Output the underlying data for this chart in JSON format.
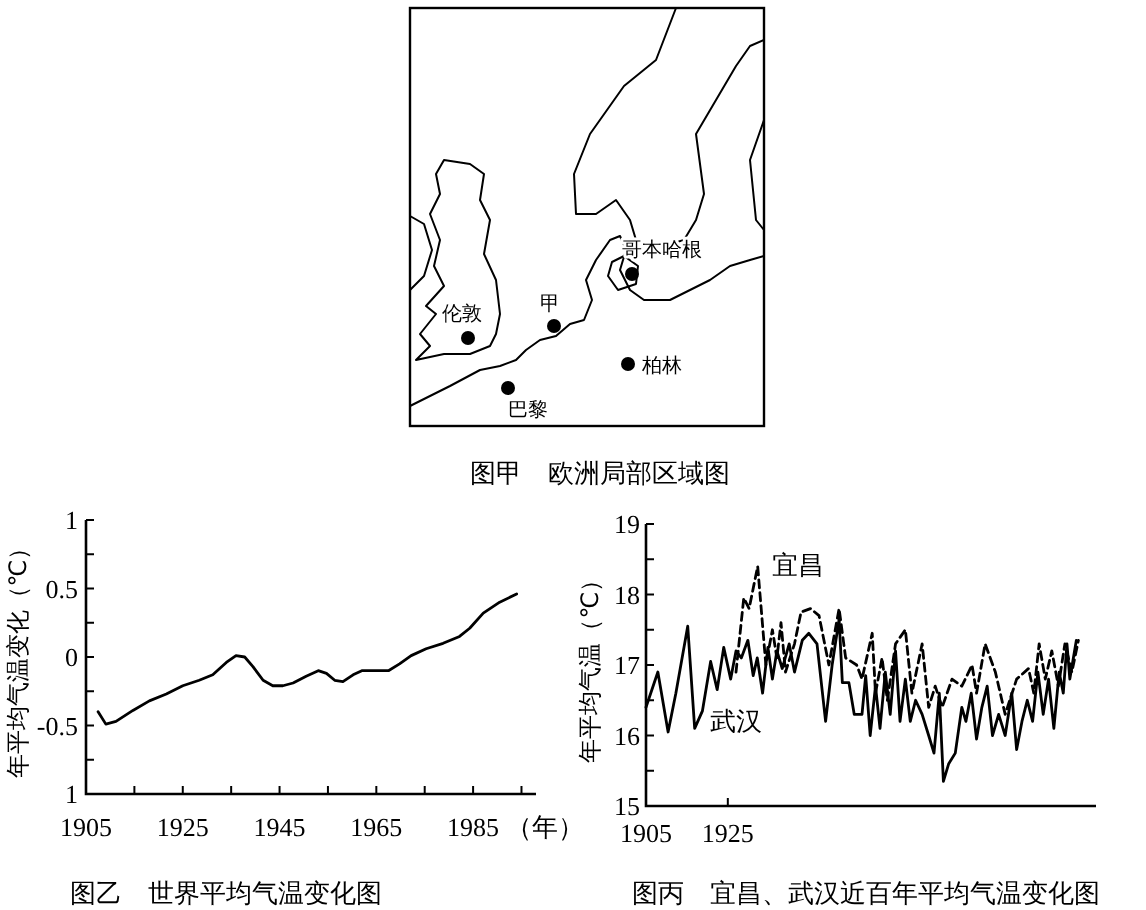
{
  "chart_data": [
    {
      "type": "other",
      "title": "图甲　欧洲局部区域图",
      "annotations": [
        "哥本哈根",
        "甲",
        "伦敦",
        "柏林",
        "巴黎"
      ]
    },
    {
      "type": "line",
      "title": "图乙　世界平均气温变化图",
      "ylabel": "年平均气温变化（℃）",
      "xlabel": "（年）",
      "color": "#000000",
      "x": [
        1907.5,
        1909.1,
        1911.2,
        1914.7,
        1918.1,
        1921.6,
        1925,
        1928.4,
        1931.2,
        1934,
        1936,
        1937.8,
        1939.5,
        1941.6,
        1943.6,
        1945.7,
        1947.8,
        1950.5,
        1953,
        1954.7,
        1956.4,
        1958.1,
        1960.2,
        1962,
        1964.3,
        1967.5,
        1969.8,
        1972.2,
        1975.3,
        1978.8,
        1982.2,
        1984.3,
        1987.1,
        1990.5,
        1994
      ],
      "values": [
        -0.4,
        -0.49,
        -0.47,
        -0.39,
        -0.32,
        -0.27,
        -0.21,
        -0.17,
        -0.13,
        -0.04,
        0.01,
        0,
        -0.07,
        -0.17,
        -0.21,
        -0.21,
        -0.19,
        -0.14,
        -0.1,
        -0.12,
        -0.17,
        -0.18,
        -0.13,
        -0.1,
        -0.1,
        -0.1,
        -0.05,
        0.01,
        0.06,
        0.1,
        0.15,
        0.21,
        0.32,
        0.4,
        0.46
      ],
      "xlim": [
        1905,
        1998
      ],
      "ylim": [
        -1,
        1
      ],
      "xticks": [
        1905,
        {
          "value": 1915,
          "label": null
        },
        1925,
        {
          "value": 1935,
          "label": null
        },
        1945,
        {
          "value": 1955,
          "label": null
        },
        1965,
        {
          "value": 1975,
          "label": null
        },
        1985,
        {
          "value": 1995,
          "label": null
        }
      ],
      "yticks": [
        {
          "value": -1,
          "label": "1"
        },
        {
          "value": -0.75,
          "label": null
        },
        -0.5,
        {
          "value": -0.25,
          "label": null
        },
        0,
        {
          "value": 0.25,
          "label": null
        },
        0.5,
        {
          "value": 0.75,
          "label": null
        },
        1
      ]
    },
    {
      "type": "line",
      "title": "图丙　宜昌、武汉近百年平均气温变化图",
      "ylabel": "年平均气温（℃）",
      "xlim": [
        1905,
        2015
      ],
      "ylim": [
        15,
        19
      ],
      "xticks": [
        1905,
        1925
      ],
      "yticks": [
        15,
        {
          "value": 15.5,
          "label": null
        },
        16,
        {
          "value": 16.5,
          "label": null
        },
        17,
        {
          "value": 17.5,
          "label": null
        },
        18,
        {
          "value": 18.5,
          "label": null
        },
        19
      ],
      "series": [
        {
          "name": "武汉",
          "color": "#000000",
          "line_style": "solid",
          "x": [
            1905,
            1907.9,
            1910.4,
            1912.3,
            1915.2,
            1916.9,
            1918.8,
            1920.8,
            1922.4,
            1924,
            1925.7,
            1927,
            1928.3,
            1929.9,
            1931.2,
            1932.2,
            1933.5,
            1934.8,
            1935.9,
            1937,
            1938.3,
            1940,
            1941.3,
            1943.2,
            1944.8,
            1946.8,
            1948.9,
            1950.5,
            1952.2,
            1953,
            1954.6,
            1955.9,
            1957.8,
            1958.7,
            1959.8,
            1961.1,
            1962.2,
            1963.5,
            1964.7,
            1966,
            1967.1,
            1968.4,
            1969.6,
            1970.9,
            1972.5,
            1974.1,
            1975.4,
            1976.7,
            1977.7,
            1979,
            1980.6,
            1982.2,
            1983.2,
            1984.5,
            1985.8,
            1987.1,
            1988.4,
            1989.7,
            1991.2,
            1992.8,
            1994.4,
            1995.6,
            1996.9,
            1998.2,
            1999.5,
            2000.8,
            2002.1,
            2003.4,
            2004.7,
            2006,
            2007,
            2007.9,
            2008.6,
            2010.2
          ],
          "values": [
            16.4,
            16.9,
            16.05,
            16.6,
            17.55,
            16.1,
            16.35,
            17.05,
            16.65,
            17.25,
            16.8,
            17.2,
            17.1,
            17.35,
            16.85,
            17.1,
            16.6,
            17.25,
            16.8,
            17.2,
            16.95,
            17.3,
            16.9,
            17.35,
            17.45,
            17.3,
            16.2,
            17,
            17.65,
            16.75,
            16.75,
            16.3,
            16.3,
            16.85,
            16,
            16.7,
            16.1,
            16.9,
            16.3,
            17.2,
            16.2,
            16.8,
            16.2,
            16.5,
            16.3,
            16,
            15.75,
            16.6,
            15.35,
            15.6,
            15.75,
            16.4,
            16.2,
            16.6,
            15.95,
            16.4,
            16.7,
            16,
            16.3,
            16,
            16.6,
            15.8,
            16.2,
            16.5,
            16.2,
            16.9,
            16.3,
            16.8,
            16.1,
            16.9,
            16.6,
            17.3,
            16.8,
            17.35
          ]
        },
        {
          "name": "宜昌",
          "color": "#000000",
          "line_style": "dashed",
          "x": [
            1927,
            1928.9,
            1930.2,
            1932.3,
            1934.3,
            1935.9,
            1937,
            1938,
            1939.1,
            1941.3,
            1942.9,
            1945.2,
            1947.3,
            1949.7,
            1952.2,
            1953.8,
            1956.5,
            1957.8,
            1960.3,
            1961.1,
            1962.7,
            1964,
            1966,
            1968.4,
            1970,
            1972.5,
            1974.1,
            1975.7,
            1977.4,
            1979.8,
            1982.2,
            1984.7,
            1985.8,
            1987.9,
            1990.4,
            1992.8,
            1995.6,
            1998.5,
            1999.8,
            2001.1,
            2002.6,
            2004.2,
            2005.8,
            2007.4,
            2009.1,
            2010.7
          ],
          "values": [
            16.9,
            17.95,
            17.8,
            18.4,
            17,
            17.5,
            17.1,
            17.6,
            16.9,
            17.3,
            17.75,
            17.8,
            17.7,
            17,
            17.8,
            17.1,
            17,
            16.8,
            17.45,
            16.6,
            17.1,
            16.5,
            17.3,
            17.5,
            16.6,
            17.3,
            16.4,
            16.7,
            16.4,
            16.8,
            16.7,
            17,
            16.6,
            17.3,
            16.9,
            16.3,
            16.8,
            16.95,
            16.6,
            17.3,
            16.8,
            17.2,
            16.7,
            17.3,
            16.9,
            17.35
          ]
        }
      ]
    }
  ]
}
